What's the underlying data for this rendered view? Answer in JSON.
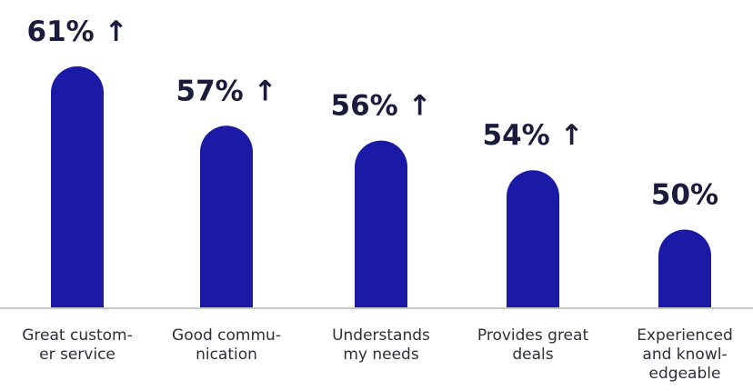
{
  "chart_data": {
    "type": "bar",
    "categories": [
      [
        "Great custom-",
        "er service"
      ],
      [
        "Good commu-",
        "nication"
      ],
      [
        "Understands",
        "my needs"
      ],
      [
        "Provides great",
        "deals"
      ],
      [
        "Experienced",
        "and knowl-",
        "edgeable"
      ]
    ],
    "values": [
      61,
      57,
      56,
      54,
      50
    ],
    "value_labels": [
      "61% ↑",
      "57% ↑",
      "56% ↑",
      "54% ↑",
      "50%"
    ],
    "bar_color": "#1a1aa6",
    "axis_color": "#c8c8c8",
    "ylim": [
      44.7,
      61
    ],
    "grid": false,
    "legend": "none"
  }
}
